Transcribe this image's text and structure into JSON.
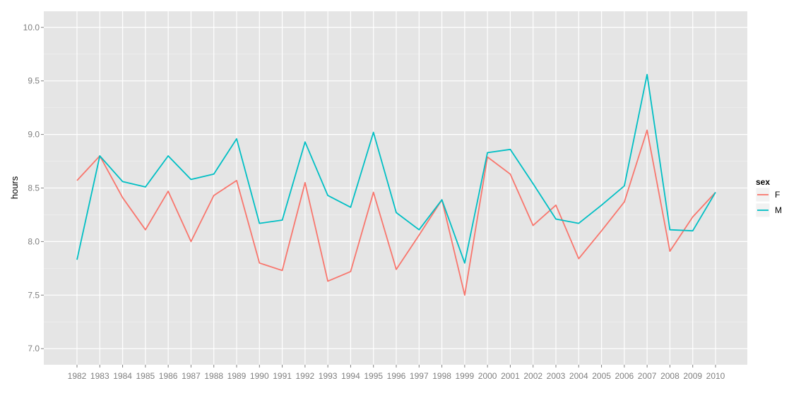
{
  "chart_data": {
    "type": "line",
    "ylabel": "hours",
    "xlabel": "",
    "ylim": [
      6.85,
      10.15
    ],
    "y_ticks": [
      7.0,
      7.5,
      8.0,
      8.5,
      9.0,
      9.5,
      10.0
    ],
    "y_tick_labels": [
      "7.0",
      "7.5",
      "8.0",
      "8.5",
      "9.0",
      "9.5",
      "10.0"
    ],
    "grid": true,
    "legend": {
      "title": "sex",
      "placement": "right"
    },
    "categories": [
      "1982",
      "1983",
      "1984",
      "1985",
      "1986",
      "1987",
      "1988",
      "1989",
      "1990",
      "1991",
      "1992",
      "1993",
      "1994",
      "1995",
      "1996",
      "1997",
      "1998",
      "1999",
      "2000",
      "2001",
      "2002",
      "2003",
      "2004",
      "2005",
      "2006",
      "2007",
      "2008",
      "2009",
      "2010"
    ],
    "series": [
      {
        "name": "F",
        "color": "#F8766D",
        "values": [
          8.57,
          8.8,
          8.41,
          8.11,
          8.47,
          8.0,
          8.43,
          8.57,
          7.8,
          7.73,
          8.55,
          7.63,
          7.72,
          8.46,
          7.74,
          8.06,
          8.39,
          7.5,
          8.79,
          8.63,
          8.15,
          8.34,
          7.84,
          8.1,
          8.37,
          9.04,
          7.91,
          8.23,
          8.46
        ]
      },
      {
        "name": "M",
        "color": "#00BFC4",
        "values": [
          7.83,
          8.8,
          8.56,
          8.51,
          8.8,
          8.58,
          8.63,
          8.96,
          8.17,
          8.2,
          8.93,
          8.43,
          8.32,
          9.02,
          8.27,
          8.11,
          8.39,
          7.8,
          8.83,
          8.86,
          8.54,
          8.21,
          8.17,
          8.34,
          8.52,
          9.56,
          8.11,
          8.1,
          8.46
        ]
      }
    ]
  }
}
